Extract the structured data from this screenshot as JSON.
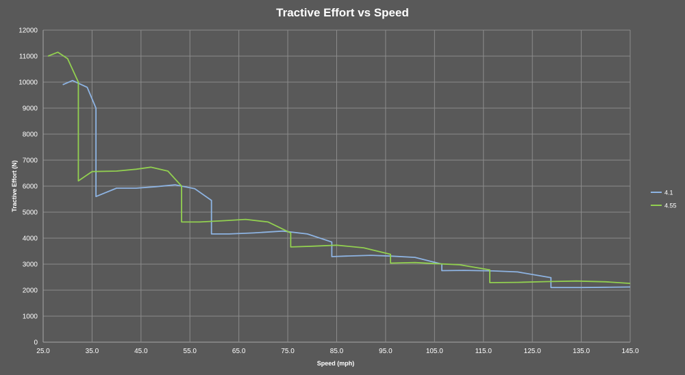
{
  "chart_data": {
    "type": "line",
    "title": "Tractive Effort vs Speed",
    "xlabel": "Speed (mph)",
    "ylabel": "Tractive Effort (N)",
    "xlim": [
      25,
      145
    ],
    "ylim": [
      0,
      12000
    ],
    "x_ticks": [
      "25.0",
      "35.0",
      "45.0",
      "55.0",
      "65.0",
      "75.0",
      "85.0",
      "95.0",
      "105.0",
      "115.0",
      "125.0",
      "135.0",
      "145.0"
    ],
    "y_ticks": [
      "0",
      "1000",
      "2000",
      "3000",
      "4000",
      "5000",
      "6000",
      "7000",
      "8000",
      "9000",
      "10000",
      "11000",
      "12000"
    ],
    "grid": true,
    "legend_position": "right",
    "series": [
      {
        "name": "4.1",
        "color": "#8eb4e3",
        "points": [
          [
            29,
            9900
          ],
          [
            31,
            10060
          ],
          [
            34,
            9800
          ],
          [
            35.8,
            9000
          ],
          [
            35.8,
            5600
          ],
          [
            40,
            5920
          ],
          [
            44,
            5920
          ],
          [
            48,
            5980
          ],
          [
            52,
            6050
          ],
          [
            56,
            5900
          ],
          [
            59.4,
            5450
          ],
          [
            59.4,
            4160
          ],
          [
            63,
            4160
          ],
          [
            68,
            4200
          ],
          [
            74,
            4270
          ],
          [
            79,
            4160
          ],
          [
            84,
            3850
          ],
          [
            84,
            3290
          ],
          [
            87,
            3310
          ],
          [
            92,
            3340
          ],
          [
            96,
            3310
          ],
          [
            101,
            3260
          ],
          [
            106.5,
            3000
          ],
          [
            106.5,
            2750
          ],
          [
            111,
            2760
          ],
          [
            117,
            2740
          ],
          [
            122,
            2700
          ],
          [
            128.8,
            2480
          ],
          [
            128.8,
            2100
          ],
          [
            135,
            2100
          ],
          [
            140,
            2110
          ],
          [
            145,
            2120
          ]
        ]
      },
      {
        "name": "4.55",
        "color": "#92d050",
        "points": [
          [
            26,
            11000
          ],
          [
            28,
            11150
          ],
          [
            30,
            10900
          ],
          [
            32.2,
            10000
          ],
          [
            32.2,
            6200
          ],
          [
            35,
            6560
          ],
          [
            40,
            6580
          ],
          [
            44,
            6650
          ],
          [
            47,
            6730
          ],
          [
            50.5,
            6580
          ],
          [
            53.3,
            6000
          ],
          [
            53.3,
            4620
          ],
          [
            57,
            4620
          ],
          [
            62,
            4670
          ],
          [
            66.4,
            4720
          ],
          [
            71,
            4620
          ],
          [
            75.6,
            4200
          ],
          [
            75.6,
            3660
          ],
          [
            80,
            3690
          ],
          [
            85,
            3730
          ],
          [
            90.5,
            3630
          ],
          [
            96,
            3380
          ],
          [
            96,
            3040
          ],
          [
            101,
            3060
          ],
          [
            105,
            3020
          ],
          [
            110,
            2980
          ],
          [
            116.3,
            2780
          ],
          [
            116.3,
            2290
          ],
          [
            122,
            2300
          ],
          [
            128,
            2330
          ],
          [
            134,
            2350
          ],
          [
            140,
            2320
          ],
          [
            145,
            2260
          ]
        ]
      }
    ]
  }
}
